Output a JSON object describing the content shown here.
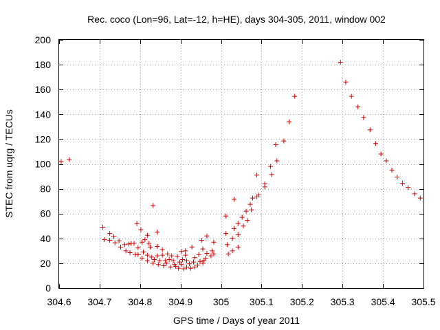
{
  "chart_data": {
    "type": "scatter",
    "title": "Rec. coco (Lon=96, Lat=-12, h=HE), days 304-305, 2011, window 002",
    "xlabel": "GPS time / Days of year 2011",
    "ylabel": "STEC from uqrg / TECUs",
    "xlim": [
      304.6,
      305.5
    ],
    "ylim": [
      0,
      200
    ],
    "xticks": [
      304.6,
      304.7,
      304.8,
      304.9,
      305.0,
      305.1,
      305.2,
      305.3,
      305.4,
      305.5
    ],
    "xtick_labels": [
      "304.6",
      "304.7",
      "304.8",
      "304.9",
      "305",
      "305.1",
      "305.2",
      "305.3",
      "305.4",
      "305.5"
    ],
    "yticks": [
      0,
      20,
      40,
      60,
      80,
      100,
      120,
      140,
      160,
      180,
      200
    ],
    "ytick_labels": [
      "0",
      "20",
      "40",
      "60",
      "80",
      "100",
      "120",
      "140",
      "160",
      "180",
      "200"
    ],
    "grid": true,
    "marker": "+",
    "color": "#cc0000",
    "points": [
      [
        304.605,
        102
      ],
      [
        304.625,
        103.5
      ],
      [
        304.708,
        49
      ],
      [
        304.712,
        39
      ],
      [
        304.725,
        38.5
      ],
      [
        304.725,
        44
      ],
      [
        304.735,
        41.5
      ],
      [
        304.738,
        36.5
      ],
      [
        304.748,
        38
      ],
      [
        304.752,
        33
      ],
      [
        304.762,
        35
      ],
      [
        304.765,
        30
      ],
      [
        304.772,
        35.5
      ],
      [
        304.775,
        28.5
      ],
      [
        304.778,
        36
      ],
      [
        304.785,
        36
      ],
      [
        304.788,
        27
      ],
      [
        304.792,
        52
      ],
      [
        304.795,
        32.5
      ],
      [
        304.795,
        27
      ],
      [
        304.802,
        47
      ],
      [
        304.805,
        37
      ],
      [
        304.805,
        24
      ],
      [
        304.808,
        29
      ],
      [
        304.812,
        39
      ],
      [
        304.818,
        42.5
      ],
      [
        304.818,
        26.5
      ],
      [
        304.818,
        22
      ],
      [
        304.822,
        36
      ],
      [
        304.825,
        33
      ],
      [
        304.828,
        25
      ],
      [
        304.832,
        66.5
      ],
      [
        304.832,
        20
      ],
      [
        304.835,
        23
      ],
      [
        304.842,
        45
      ],
      [
        304.842,
        33.5
      ],
      [
        304.842,
        26
      ],
      [
        304.845,
        19
      ],
      [
        304.848,
        22
      ],
      [
        304.855,
        31
      ],
      [
        304.855,
        26.5
      ],
      [
        304.858,
        18
      ],
      [
        304.862,
        22
      ],
      [
        304.865,
        20
      ],
      [
        304.868,
        27.5
      ],
      [
        304.872,
        23
      ],
      [
        304.875,
        17
      ],
      [
        304.878,
        26
      ],
      [
        304.882,
        22
      ],
      [
        304.885,
        19
      ],
      [
        304.888,
        17.5
      ],
      [
        304.892,
        25.5
      ],
      [
        304.895,
        16
      ],
      [
        304.898,
        21
      ],
      [
        304.902,
        29.5
      ],
      [
        304.902,
        19
      ],
      [
        304.905,
        23
      ],
      [
        304.908,
        15.5
      ],
      [
        304.912,
        30
      ],
      [
        304.912,
        26.5
      ],
      [
        304.915,
        22
      ],
      [
        304.915,
        17
      ],
      [
        304.922,
        19.5
      ],
      [
        304.925,
        16
      ],
      [
        304.928,
        33
      ],
      [
        304.932,
        21
      ],
      [
        304.935,
        24.5
      ],
      [
        304.935,
        17
      ],
      [
        304.942,
        18.5
      ],
      [
        304.945,
        27
      ],
      [
        304.948,
        21.5
      ],
      [
        304.952,
        38.5
      ],
      [
        304.955,
        31.5
      ],
      [
        304.955,
        20
      ],
      [
        304.958,
        22.5
      ],
      [
        304.962,
        24
      ],
      [
        304.965,
        42
      ],
      [
        304.965,
        28
      ],
      [
        304.975,
        26
      ],
      [
        304.978,
        30
      ],
      [
        304.982,
        37
      ],
      [
        304.982,
        27.5
      ],
      [
        305.012,
        58
      ],
      [
        305.012,
        44
      ],
      [
        305.015,
        35
      ],
      [
        305.018,
        27.5
      ],
      [
        305.028,
        40
      ],
      [
        305.028,
        30
      ],
      [
        305.032,
        71.5
      ],
      [
        305.032,
        48
      ],
      [
        305.042,
        52
      ],
      [
        305.042,
        43
      ],
      [
        305.042,
        33
      ],
      [
        305.052,
        57
      ],
      [
        305.055,
        50
      ],
      [
        305.062,
        62
      ],
      [
        305.065,
        54.5
      ],
      [
        305.072,
        67.5
      ],
      [
        305.075,
        63
      ],
      [
        305.078,
        72.5
      ],
      [
        305.088,
        91
      ],
      [
        305.088,
        73.5
      ],
      [
        305.092,
        75
      ],
      [
        305.108,
        84
      ],
      [
        305.108,
        81.5
      ],
      [
        305.122,
        98
      ],
      [
        305.125,
        91.5
      ],
      [
        305.135,
        115.5
      ],
      [
        305.138,
        102.5
      ],
      [
        305.155,
        118.5
      ],
      [
        305.168,
        134
      ],
      [
        305.182,
        154.5
      ],
      [
        305.295,
        182
      ],
      [
        305.308,
        166
      ],
      [
        305.322,
        154.5
      ],
      [
        305.338,
        146
      ],
      [
        305.352,
        137.5
      ],
      [
        305.368,
        127.5
      ],
      [
        305.382,
        116.5
      ],
      [
        305.395,
        108
      ],
      [
        305.408,
        102.5
      ],
      [
        305.422,
        95
      ],
      [
        305.435,
        89.5
      ],
      [
        305.448,
        84.5
      ],
      [
        305.462,
        81
      ],
      [
        305.478,
        76
      ],
      [
        305.492,
        72.5
      ]
    ]
  }
}
